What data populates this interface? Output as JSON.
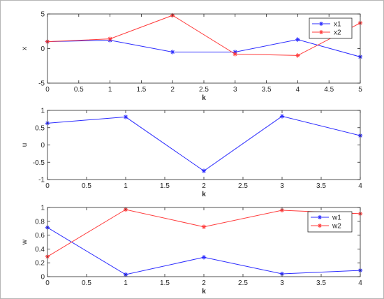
{
  "chart_data": [
    {
      "type": "line",
      "xlabel": "k",
      "ylabel": "x",
      "xlim": [
        0,
        5
      ],
      "ylim": [
        -5,
        5
      ],
      "xticks": [
        0,
        0.5,
        1,
        1.5,
        2,
        2.5,
        3,
        3.5,
        4,
        4.5,
        5
      ],
      "yticks": [
        -5,
        0,
        5
      ],
      "x": [
        0,
        1,
        2,
        3,
        4,
        5
      ],
      "legend_position": "top-right",
      "series": [
        {
          "name": "x1",
          "color": "#2b2bff",
          "values": [
            1.0,
            1.2,
            -0.5,
            -0.5,
            1.3,
            -1.2
          ]
        },
        {
          "name": "x2",
          "color": "#ff3b3b",
          "values": [
            1.0,
            1.4,
            4.8,
            -0.8,
            -1.0,
            3.7
          ]
        }
      ]
    },
    {
      "type": "line",
      "xlabel": "k",
      "ylabel": "u",
      "xlim": [
        0,
        4
      ],
      "ylim": [
        -1,
        1
      ],
      "xticks": [
        0,
        0.5,
        1,
        1.5,
        2,
        2.5,
        3,
        3.5,
        4
      ],
      "yticks": [
        -1,
        -0.5,
        0,
        0.5,
        1
      ],
      "x": [
        0,
        1,
        2,
        3,
        4
      ],
      "series": [
        {
          "color": "#2b2bff",
          "values": [
            0.63,
            0.81,
            -0.75,
            0.83,
            0.27
          ]
        }
      ]
    },
    {
      "type": "line",
      "xlabel": "k",
      "ylabel": "w",
      "xlim": [
        0,
        4
      ],
      "ylim": [
        0,
        1
      ],
      "xticks": [
        0,
        0.5,
        1,
        1.5,
        2,
        2.5,
        3,
        3.5,
        4
      ],
      "yticks": [
        0,
        0.2,
        0.4,
        0.6,
        0.8,
        1
      ],
      "x": [
        0,
        1,
        2,
        3,
        4
      ],
      "legend_position": "top-right",
      "series": [
        {
          "name": "w1",
          "color": "#2b2bff",
          "values": [
            0.71,
            0.03,
            0.28,
            0.04,
            0.09
          ]
        },
        {
          "name": "w2",
          "color": "#ff3b3b",
          "values": [
            0.29,
            0.97,
            0.72,
            0.96,
            0.91
          ]
        }
      ]
    }
  ]
}
